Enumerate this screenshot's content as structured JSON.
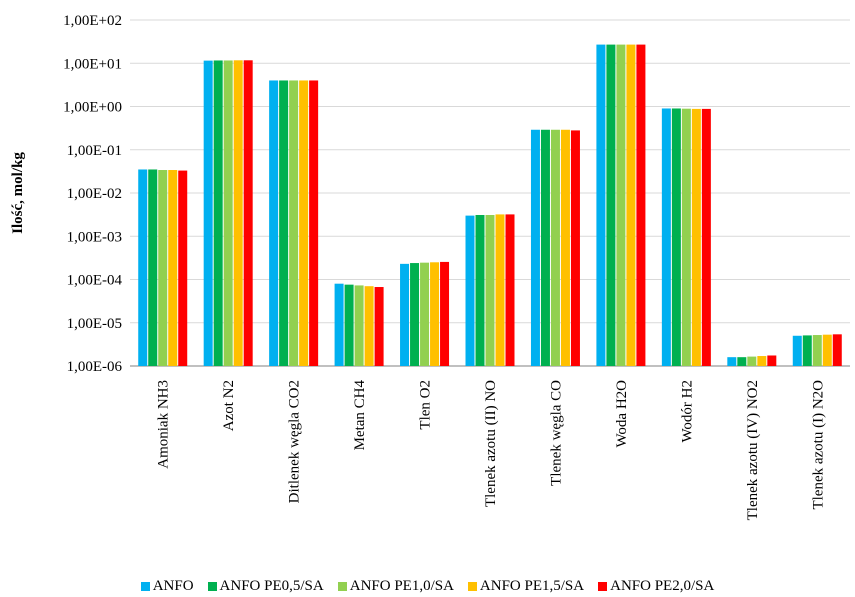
{
  "chart_data": {
    "type": "bar",
    "title": "",
    "xlabel": "",
    "ylabel": "Ilość,  mol/kg",
    "yscale": "log",
    "ylim": [
      1e-06,
      100
    ],
    "ytick_values": [
      1e-06,
      1e-05,
      0.0001,
      0.001,
      0.01,
      0.1,
      1,
      10,
      100
    ],
    "ytick_labels": [
      "1,00E-06",
      "1,00E-05",
      "1,00E-04",
      "1,00E-03",
      "1,00E-02",
      "1,00E-01",
      "1,00E+00",
      "1,00E+01",
      "1,00E+02"
    ],
    "grid": true,
    "legend_position": "bottom",
    "categories": [
      "Amoniak NH3",
      "Azot N2",
      "Ditlenek węgla CO2",
      "Metan CH4",
      "Tlen O2",
      "Tlenek azotu (II)  NO",
      "Tlenek węgla CO",
      "Woda H2O",
      "Wodór H2",
      "Tlenek azotu (IV) NO2",
      "Tlenek azotu (I) N2O"
    ],
    "series": [
      {
        "name": "ANFO",
        "color": "#00b0f0",
        "values": [
          0.035,
          11.5,
          4.0,
          8e-05,
          0.00023,
          0.003,
          0.29,
          27,
          0.9,
          1.6e-06,
          5e-06
        ]
      },
      {
        "name": "ANFO PE0,5/SA",
        "color": "#00b050",
        "values": [
          0.035,
          11.6,
          4.0,
          7.6e-05,
          0.00024,
          0.0031,
          0.29,
          27,
          0.9,
          1.6e-06,
          5.1e-06
        ]
      },
      {
        "name": "ANFO PE1,0/SA",
        "color": "#92d050",
        "values": [
          0.034,
          11.6,
          4.0,
          7.3e-05,
          0.000245,
          0.0031,
          0.29,
          27,
          0.89,
          1.65e-06,
          5.2e-06
        ]
      },
      {
        "name": "ANFO PE1,5/SA",
        "color": "#ffc000",
        "values": [
          0.034,
          11.7,
          4.0,
          7e-05,
          0.00025,
          0.0032,
          0.29,
          27,
          0.88,
          1.7e-06,
          5.3e-06
        ]
      },
      {
        "name": "ANFO PE2,0/SA",
        "color": "#ff0000",
        "values": [
          0.033,
          11.7,
          4.0,
          6.7e-05,
          0.000255,
          0.0032,
          0.28,
          27,
          0.88,
          1.75e-06,
          5.4e-06
        ]
      }
    ]
  }
}
